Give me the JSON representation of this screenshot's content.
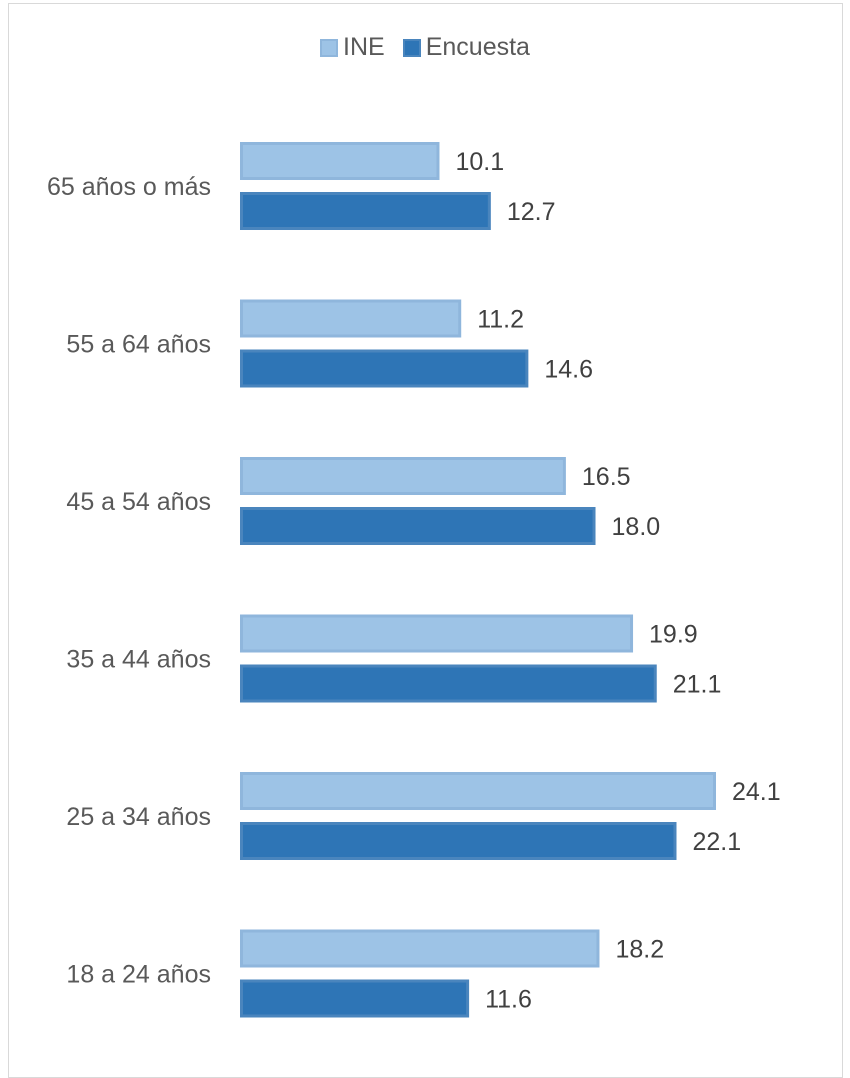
{
  "chart_data": {
    "type": "bar",
    "orientation": "horizontal",
    "categories": [
      "18 a 24 años",
      "25 a 34 años",
      "35 a 44 años",
      "45 a 54 años",
      "55 a 64 años",
      "65 años o más"
    ],
    "series": [
      {
        "name": "INE",
        "values": [
          18.2,
          24.1,
          19.9,
          16.5,
          11.2,
          10.1
        ],
        "color": "#9dc3e6",
        "border": "#8fb6dc"
      },
      {
        "name": "Encuesta",
        "values": [
          11.6,
          22.1,
          21.1,
          18.0,
          14.6,
          12.7
        ],
        "color": "#2e75b6",
        "border": "#4a85bd"
      }
    ],
    "value_labels": {
      "INE": [
        "18.2",
        "24.1",
        "19.9",
        "16.5",
        "11.2",
        "10.1"
      ],
      "Encuesta": [
        "11.6",
        "22.1",
        "21.1",
        "18.0",
        "14.6",
        "12.7"
      ]
    },
    "title": "",
    "xlabel": "",
    "ylabel": "",
    "xlim": [
      0,
      28
    ],
    "grid": false,
    "legend_position": "top"
  }
}
